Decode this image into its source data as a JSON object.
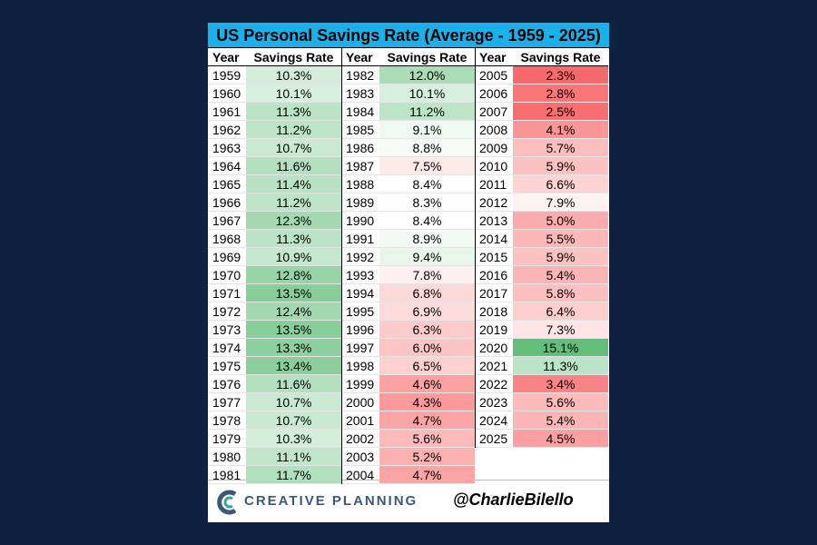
{
  "table": {
    "title": "US Personal Savings Rate (Average - 1959 - 2025)",
    "columns": [
      {
        "headers": [
          "Year",
          "Savings Rate"
        ],
        "rows": [
          [
            "1959",
            "10.3%"
          ],
          [
            "1960",
            "10.1%"
          ],
          [
            "1961",
            "11.3%"
          ],
          [
            "1962",
            "11.2%"
          ],
          [
            "1963",
            "10.7%"
          ],
          [
            "1964",
            "11.6%"
          ],
          [
            "1965",
            "11.4%"
          ],
          [
            "1966",
            "11.2%"
          ],
          [
            "1967",
            "12.3%"
          ],
          [
            "1968",
            "11.3%"
          ],
          [
            "1969",
            "10.9%"
          ],
          [
            "1970",
            "12.8%"
          ],
          [
            "1971",
            "13.5%"
          ],
          [
            "1972",
            "12.4%"
          ],
          [
            "1973",
            "13.5%"
          ],
          [
            "1974",
            "13.3%"
          ],
          [
            "1975",
            "13.4%"
          ],
          [
            "1976",
            "11.6%"
          ],
          [
            "1977",
            "10.7%"
          ],
          [
            "1978",
            "10.7%"
          ],
          [
            "1979",
            "10.3%"
          ],
          [
            "1980",
            "11.1%"
          ],
          [
            "1981",
            "11.7%"
          ]
        ]
      },
      {
        "headers": [
          "Year",
          "Savings Rate"
        ],
        "rows": [
          [
            "1982",
            "12.0%"
          ],
          [
            "1983",
            "10.1%"
          ],
          [
            "1984",
            "11.2%"
          ],
          [
            "1985",
            "9.1%"
          ],
          [
            "1986",
            "8.8%"
          ],
          [
            "1987",
            "7.5%"
          ],
          [
            "1988",
            "8.4%"
          ],
          [
            "1989",
            "8.3%"
          ],
          [
            "1990",
            "8.4%"
          ],
          [
            "1991",
            "8.9%"
          ],
          [
            "1992",
            "9.4%"
          ],
          [
            "1993",
            "7.8%"
          ],
          [
            "1994",
            "6.8%"
          ],
          [
            "1995",
            "6.9%"
          ],
          [
            "1996",
            "6.3%"
          ],
          [
            "1997",
            "6.0%"
          ],
          [
            "1998",
            "6.5%"
          ],
          [
            "1999",
            "4.6%"
          ],
          [
            "2000",
            "4.3%"
          ],
          [
            "2001",
            "4.7%"
          ],
          [
            "2002",
            "5.6%"
          ],
          [
            "2003",
            "5.2%"
          ],
          [
            "2004",
            "4.7%"
          ]
        ]
      },
      {
        "headers": [
          "Year",
          "Savings Rate"
        ],
        "rows": [
          [
            "2005",
            "2.3%"
          ],
          [
            "2006",
            "2.8%"
          ],
          [
            "2007",
            "2.5%"
          ],
          [
            "2008",
            "4.1%"
          ],
          [
            "2009",
            "5.7%"
          ],
          [
            "2010",
            "5.9%"
          ],
          [
            "2011",
            "6.6%"
          ],
          [
            "2012",
            "7.9%"
          ],
          [
            "2013",
            "5.0%"
          ],
          [
            "2014",
            "5.5%"
          ],
          [
            "2015",
            "5.9%"
          ],
          [
            "2016",
            "5.4%"
          ],
          [
            "2017",
            "5.8%"
          ],
          [
            "2018",
            "6.4%"
          ],
          [
            "2019",
            "7.3%"
          ],
          [
            "2020",
            "15.1%"
          ],
          [
            "2021",
            "11.3%"
          ],
          [
            "2022",
            "3.4%"
          ],
          [
            "2023",
            "5.6%"
          ],
          [
            "2024",
            "5.4%"
          ],
          [
            "2025",
            "4.5%"
          ]
        ]
      }
    ],
    "color_scale": {
      "low": "#f8696b",
      "mid": "#ffffff",
      "high": "#63be7b"
    }
  },
  "footer": {
    "brand": "CREATIVE PLANNING",
    "handle": "@CharlieBilello"
  }
}
